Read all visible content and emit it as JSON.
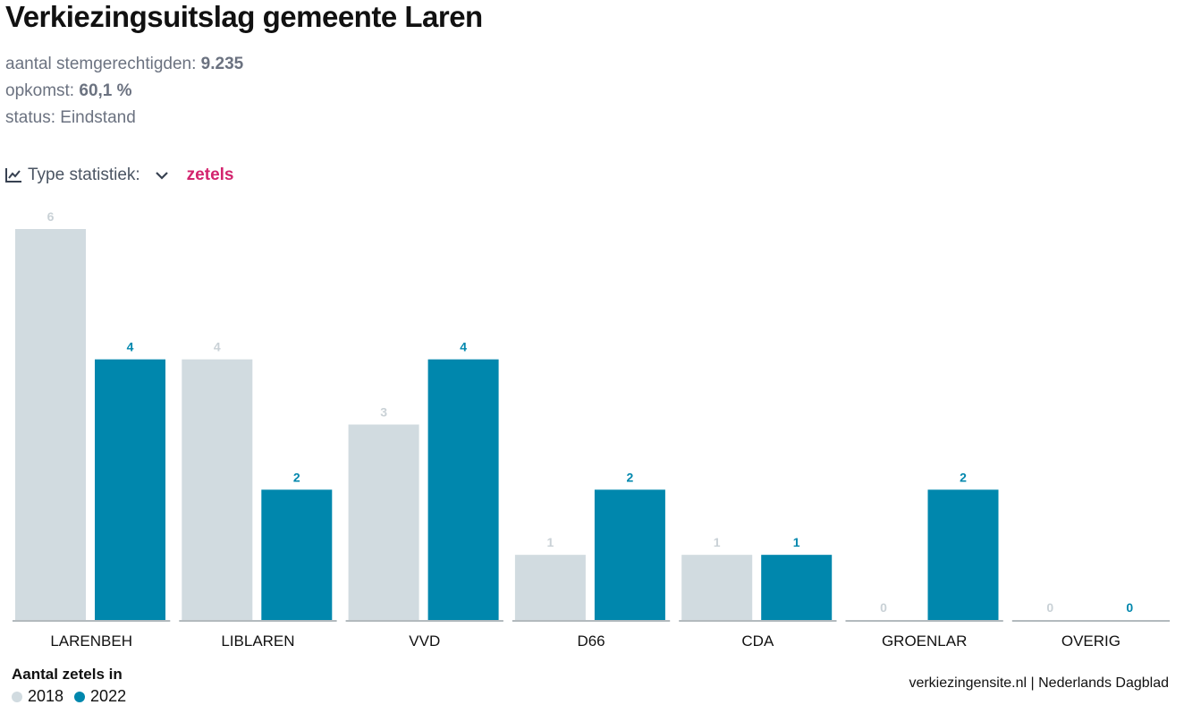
{
  "title": "Verkiezingsuitslag gemeente Laren",
  "meta": {
    "voters_label": "aantal stemgerechtigden:",
    "voters_value": "9.235",
    "turnout_label": "opkomst:",
    "turnout_value": "60,1 %",
    "status_label": "status:",
    "status_value": "Eindstand"
  },
  "stat_selector": {
    "label": "Type statistiek:",
    "value": "zetels",
    "icon": "line-chart-icon",
    "chevron": "chevron-down-icon"
  },
  "chart_data": {
    "type": "bar",
    "categories": [
      "LARENBEH",
      "LIBLAREN",
      "VVD",
      "D66",
      "CDA",
      "GROENLAR",
      "OVERIG"
    ],
    "series": [
      {
        "name": "2018",
        "color": "#d1dbe0",
        "label_color": "#c9d1d6",
        "values": [
          6,
          4,
          3,
          1,
          1,
          0,
          0
        ]
      },
      {
        "name": "2022",
        "color": "#0087ad",
        "label_color": "#0087ad",
        "values": [
          4,
          2,
          4,
          2,
          1,
          2,
          0
        ]
      }
    ],
    "ylim": [
      0,
      6
    ]
  },
  "legend": {
    "title": "Aantal zetels in"
  },
  "source": "verkiezingensite.nl | Nederlands Dagblad",
  "accent": "#d3246e"
}
